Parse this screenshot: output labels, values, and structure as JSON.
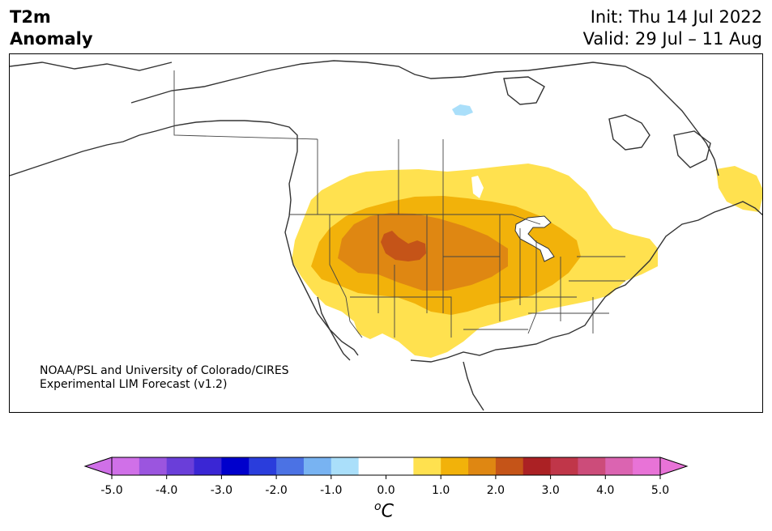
{
  "header": {
    "variable": "T2m",
    "quantity": "Anomaly",
    "init": "Init: Thu 14 Jul 2022",
    "valid": "Valid: 29 Jul – 11 Aug"
  },
  "credit": {
    "line1": "NOAA/PSL and University of Colorado/CIRES",
    "line2": "Experimental LIM Forecast (v1.2)"
  },
  "colorbar": {
    "ticks": [
      "-5.0",
      "-4.0",
      "-3.0",
      "-2.0",
      "-1.0",
      "0.0",
      "1.0",
      "2.0",
      "3.0",
      "4.0",
      "5.0"
    ],
    "unit_sup": "o",
    "unit": "C",
    "colors": [
      "#d070e8",
      "#9b55df",
      "#6a3ed9",
      "#3a26d4",
      "#0000cc",
      "#2a3ddc",
      "#4b72e4",
      "#78b3f2",
      "#aadffa",
      "#ffffff",
      "#ffffff",
      "#ffe14f",
      "#f2b20a",
      "#df8712",
      "#c55418",
      "#ab2124",
      "#c03649",
      "#cc4c7a",
      "#db64b1",
      "#e873d7"
    ]
  },
  "map": {
    "region": "North America",
    "anomaly_levels": {
      "light_yellow": "#ffe14f",
      "gold": "#f2b20a",
      "orange": "#df8712",
      "dark_orange": "#c55418",
      "lake_blue": "#aadffa"
    }
  }
}
